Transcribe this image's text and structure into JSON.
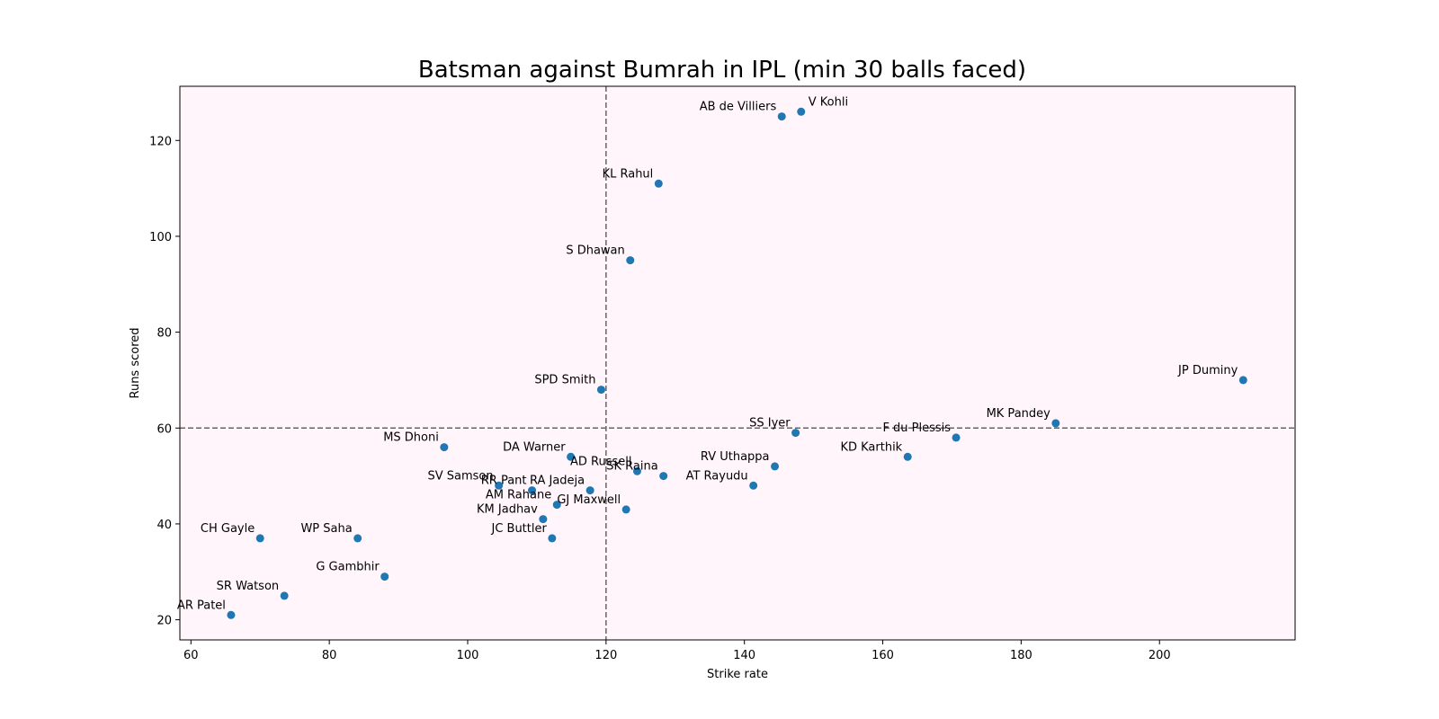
{
  "chart_data": {
    "type": "scatter",
    "title": "Batsman against Bumrah in IPL (min 30 balls faced)",
    "xlabel": "Strike rate",
    "ylabel": "Runs scored",
    "xlim": [
      58.4,
      219.6
    ],
    "ylim": [
      15.8,
      131.3
    ],
    "xticks": [
      60,
      80,
      100,
      120,
      140,
      160,
      180,
      200
    ],
    "yticks": [
      20,
      40,
      60,
      80,
      100,
      120
    ],
    "grid": false,
    "legend": "none",
    "reference_lines": [
      {
        "orientation": "vertical",
        "value": 120
      },
      {
        "orientation": "horizontal",
        "value": 60
      }
    ],
    "points": [
      {
        "label": "V Kohli",
        "x": 148.2,
        "y": 126
      },
      {
        "label": "AB de Villiers",
        "x": 145.4,
        "y": 125,
        "label_color": "#8b0000"
      },
      {
        "label": "KL Rahul",
        "x": 127.6,
        "y": 111
      },
      {
        "label": "S Dhawan",
        "x": 123.5,
        "y": 95
      },
      {
        "label": "JP Duminy",
        "x": 212.1,
        "y": 70
      },
      {
        "label": "SPD Smith",
        "x": 119.3,
        "y": 68
      },
      {
        "label": "MK Pandey",
        "x": 185.0,
        "y": 61
      },
      {
        "label": "SS Iyer",
        "x": 147.4,
        "y": 59
      },
      {
        "label": "F du Plessis",
        "x": 170.6,
        "y": 58
      },
      {
        "label": "MS Dhoni",
        "x": 96.6,
        "y": 56
      },
      {
        "label": "DA Warner",
        "x": 114.9,
        "y": 54
      },
      {
        "label": "KD Karthik",
        "x": 163.6,
        "y": 54
      },
      {
        "label": "RV Uthappa",
        "x": 144.4,
        "y": 52
      },
      {
        "label": "AD Russell",
        "x": 124.5,
        "y": 51
      },
      {
        "label": "SK Raina",
        "x": 128.3,
        "y": 50
      },
      {
        "label": "SV Samson",
        "x": 104.5,
        "y": 48
      },
      {
        "label": "AT Rayudu",
        "x": 141.3,
        "y": 48
      },
      {
        "label": "RR Pant",
        "x": 109.3,
        "y": 47
      },
      {
        "label": "RA Jadeja",
        "x": 117.7,
        "y": 47
      },
      {
        "label": "AM Rahane",
        "x": 112.9,
        "y": 44
      },
      {
        "label": "GJ Maxwell",
        "x": 122.9,
        "y": 43
      },
      {
        "label": "KM Jadhav",
        "x": 110.9,
        "y": 41
      },
      {
        "label": "CH Gayle",
        "x": 70.0,
        "y": 37
      },
      {
        "label": "WP Saha",
        "x": 84.1,
        "y": 37
      },
      {
        "label": "JC Buttler",
        "x": 112.2,
        "y": 37
      },
      {
        "label": "G Gambhir",
        "x": 88.0,
        "y": 29
      },
      {
        "label": "SR Watson",
        "x": 73.5,
        "y": 25
      },
      {
        "label": "AR Patel",
        "x": 65.8,
        "y": 21
      }
    ],
    "colors": {
      "marker": "#1f77b4",
      "plot_background": "#fff5fa",
      "reference_line": "#666666"
    }
  }
}
